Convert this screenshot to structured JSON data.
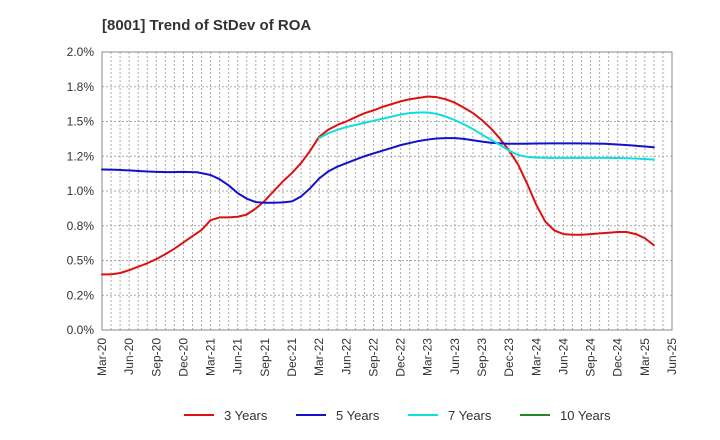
{
  "chart_data": {
    "type": "line",
    "title": "[8001]  Trend of StDev of ROA",
    "xlabel": "",
    "ylabel": "",
    "ylim": [
      0,
      2.0
    ],
    "y_ticks": [
      0,
      0.25,
      0.5,
      0.75,
      1.0,
      1.25,
      1.5,
      1.75,
      2.0
    ],
    "y_tick_labels": [
      "0.0%",
      "0.2%",
      "0.5%",
      "0.8%",
      "1.0%",
      "1.2%",
      "1.5%",
      "1.8%",
      "2.0%"
    ],
    "x_tick_labels": [
      "Mar-20",
      "Jun-20",
      "Sep-20",
      "Dec-20",
      "Mar-21",
      "Jun-21",
      "Sep-21",
      "Dec-21",
      "Mar-22",
      "Jun-22",
      "Sep-22",
      "Dec-22",
      "Mar-23",
      "Jun-23",
      "Sep-23",
      "Dec-23",
      "Mar-24",
      "Jun-24",
      "Sep-24",
      "Dec-24",
      "Mar-25",
      "Jun-25"
    ],
    "grid": true,
    "legend_position": "bottom",
    "series": [
      {
        "name": "3 Years",
        "color": "#dd1111",
        "points": [
          [
            0,
            0.4
          ],
          [
            0.33,
            0.4
          ],
          [
            0.67,
            0.41
          ],
          [
            1,
            0.43
          ],
          [
            1.33,
            0.455
          ],
          [
            1.67,
            0.48
          ],
          [
            2,
            0.51
          ],
          [
            2.33,
            0.545
          ],
          [
            2.67,
            0.585
          ],
          [
            3,
            0.63
          ],
          [
            3.33,
            0.675
          ],
          [
            3.67,
            0.72
          ],
          [
            4,
            0.79
          ],
          [
            4.33,
            0.81
          ],
          [
            4.67,
            0.81
          ],
          [
            5,
            0.815
          ],
          [
            5.33,
            0.83
          ],
          [
            5.67,
            0.875
          ],
          [
            6,
            0.93
          ],
          [
            6.33,
            1.0
          ],
          [
            6.67,
            1.07
          ],
          [
            7,
            1.13
          ],
          [
            7.33,
            1.2
          ],
          [
            7.67,
            1.29
          ],
          [
            8,
            1.39
          ],
          [
            8.33,
            1.44
          ],
          [
            8.67,
            1.475
          ],
          [
            9,
            1.5
          ],
          [
            9.33,
            1.53
          ],
          [
            9.67,
            1.56
          ],
          [
            10,
            1.58
          ],
          [
            10.33,
            1.605
          ],
          [
            10.67,
            1.625
          ],
          [
            11,
            1.645
          ],
          [
            11.33,
            1.66
          ],
          [
            11.67,
            1.67
          ],
          [
            12,
            1.68
          ],
          [
            12.33,
            1.675
          ],
          [
            12.67,
            1.66
          ],
          [
            13,
            1.635
          ],
          [
            13.33,
            1.6
          ],
          [
            13.67,
            1.56
          ],
          [
            14,
            1.51
          ],
          [
            14.33,
            1.45
          ],
          [
            14.67,
            1.375
          ],
          [
            15,
            1.29
          ],
          [
            15.33,
            1.19
          ],
          [
            15.67,
            1.05
          ],
          [
            16,
            0.9
          ],
          [
            16.33,
            0.78
          ],
          [
            16.67,
            0.715
          ],
          [
            17,
            0.69
          ],
          [
            17.33,
            0.685
          ],
          [
            17.67,
            0.685
          ],
          [
            18,
            0.69
          ],
          [
            18.33,
            0.695
          ],
          [
            18.67,
            0.7
          ],
          [
            19,
            0.705
          ],
          [
            19.33,
            0.705
          ],
          [
            19.67,
            0.69
          ],
          [
            20,
            0.66
          ],
          [
            20.33,
            0.61
          ]
        ]
      },
      {
        "name": "5 Years",
        "color": "#1111cc",
        "points": [
          [
            0,
            1.155
          ],
          [
            0.5,
            1.153
          ],
          [
            1,
            1.148
          ],
          [
            1.5,
            1.142
          ],
          [
            2,
            1.138
          ],
          [
            2.5,
            1.136
          ],
          [
            3,
            1.138
          ],
          [
            3.5,
            1.135
          ],
          [
            4,
            1.115
          ],
          [
            4.33,
            1.085
          ],
          [
            4.67,
            1.04
          ],
          [
            5,
            0.985
          ],
          [
            5.33,
            0.945
          ],
          [
            5.67,
            0.92
          ],
          [
            6,
            0.915
          ],
          [
            6.33,
            0.915
          ],
          [
            6.67,
            0.918
          ],
          [
            7,
            0.925
          ],
          [
            7.33,
            0.96
          ],
          [
            7.67,
            1.02
          ],
          [
            8,
            1.09
          ],
          [
            8.33,
            1.14
          ],
          [
            8.67,
            1.175
          ],
          [
            9,
            1.2
          ],
          [
            9.33,
            1.225
          ],
          [
            9.67,
            1.25
          ],
          [
            10,
            1.27
          ],
          [
            10.33,
            1.29
          ],
          [
            10.67,
            1.31
          ],
          [
            11,
            1.33
          ],
          [
            11.33,
            1.345
          ],
          [
            11.67,
            1.36
          ],
          [
            12,
            1.37
          ],
          [
            12.33,
            1.378
          ],
          [
            12.67,
            1.38
          ],
          [
            13,
            1.38
          ],
          [
            13.33,
            1.375
          ],
          [
            13.67,
            1.365
          ],
          [
            14,
            1.355
          ],
          [
            14.33,
            1.347
          ],
          [
            14.67,
            1.343
          ],
          [
            15,
            1.34
          ],
          [
            15.5,
            1.34
          ],
          [
            16,
            1.342
          ],
          [
            16.5,
            1.343
          ],
          [
            17,
            1.343
          ],
          [
            17.5,
            1.343
          ],
          [
            18,
            1.342
          ],
          [
            18.5,
            1.34
          ],
          [
            19,
            1.335
          ],
          [
            19.5,
            1.328
          ],
          [
            20,
            1.32
          ],
          [
            20.33,
            1.315
          ]
        ]
      },
      {
        "name": "7 Years",
        "color": "#11dddd",
        "points": [
          [
            8,
            1.38
          ],
          [
            8.33,
            1.415
          ],
          [
            8.67,
            1.44
          ],
          [
            9,
            1.46
          ],
          [
            9.33,
            1.475
          ],
          [
            9.67,
            1.49
          ],
          [
            10,
            1.505
          ],
          [
            10.33,
            1.52
          ],
          [
            10.67,
            1.535
          ],
          [
            11,
            1.55
          ],
          [
            11.33,
            1.56
          ],
          [
            11.67,
            1.565
          ],
          [
            12,
            1.565
          ],
          [
            12.33,
            1.555
          ],
          [
            12.67,
            1.535
          ],
          [
            13,
            1.51
          ],
          [
            13.33,
            1.48
          ],
          [
            13.67,
            1.445
          ],
          [
            14,
            1.405
          ],
          [
            14.33,
            1.37
          ],
          [
            14.67,
            1.33
          ],
          [
            15,
            1.29
          ],
          [
            15.33,
            1.26
          ],
          [
            15.67,
            1.245
          ],
          [
            16,
            1.24
          ],
          [
            16.5,
            1.238
          ],
          [
            17,
            1.238
          ],
          [
            17.5,
            1.238
          ],
          [
            18,
            1.238
          ],
          [
            18.5,
            1.238
          ],
          [
            19,
            1.237
          ],
          [
            19.5,
            1.235
          ],
          [
            20,
            1.23
          ],
          [
            20.33,
            1.226
          ]
        ]
      },
      {
        "name": "10 Years",
        "color": "#228822",
        "points": []
      }
    ]
  }
}
